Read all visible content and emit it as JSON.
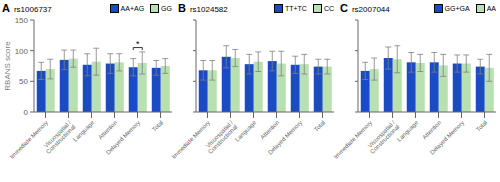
{
  "chart_data": [
    {
      "type": "bar",
      "panel_label": "A",
      "title": "rs1006737",
      "ylabel": "RBANS score",
      "categories": [
        "Immediate Memory",
        "Visuospatial / Constructional",
        "Language",
        "Attention",
        "Delayed Memory",
        "Total"
      ],
      "series": [
        {
          "name": "AA+AG",
          "color": "#1a4bc4",
          "values": [
            67,
            85,
            77,
            79,
            73,
            72
          ],
          "errors": [
            14,
            16,
            18,
            16,
            14,
            12
          ]
        },
        {
          "name": "GG",
          "color": "#b8e0b0",
          "values": [
            70,
            87,
            82,
            81,
            80,
            75
          ],
          "errors": [
            16,
            14,
            22,
            14,
            18,
            12
          ]
        }
      ],
      "ylim": [
        0,
        150
      ],
      "yticks": [
        0,
        50,
        100,
        150
      ],
      "legend": "upper right",
      "grid": false,
      "annotations": [
        {
          "text": "*",
          "category": "Delayed Memory"
        }
      ]
    },
    {
      "type": "bar",
      "panel_label": "B",
      "title": "rs1024582",
      "categories": [
        "Immediate Memory",
        "Visuospatial / Constructional",
        "Language",
        "Attention",
        "Delayed Memory",
        "Total"
      ],
      "series": [
        {
          "name": "TT+TC",
          "color": "#1a4bc4",
          "values": [
            68,
            90,
            78,
            83,
            77,
            74
          ],
          "errors": [
            16,
            18,
            16,
            16,
            14,
            12
          ]
        },
        {
          "name": "CC",
          "color": "#b8e0b0",
          "values": [
            68,
            88,
            82,
            79,
            78,
            74
          ],
          "errors": [
            16,
            14,
            16,
            20,
            16,
            12
          ]
        }
      ],
      "ylim": [
        0,
        150
      ],
      "yticks": [
        0,
        50,
        100,
        150
      ],
      "legend": "upper right",
      "grid": false,
      "tick_labels": "x"
    },
    {
      "type": "bar",
      "panel_label": "C",
      "title": "rs2007044",
      "categories": [
        "Immediate Memory",
        "Visuospatial / Constructional",
        "Language",
        "Attention",
        "Delayed Memory",
        "Total"
      ],
      "series": [
        {
          "name": "GG+GA",
          "color": "#1a4bc4",
          "values": [
            67,
            88,
            81,
            81,
            79,
            74
          ],
          "errors": [
            14,
            18,
            16,
            16,
            14,
            12
          ]
        },
        {
          "name": "AA",
          "color": "#b8e0b0",
          "values": [
            70,
            86,
            80,
            76,
            79,
            72
          ],
          "errors": [
            18,
            22,
            14,
            18,
            14,
            22
          ]
        }
      ],
      "ylim": [
        0,
        150
      ],
      "yticks": [
        0,
        50,
        100,
        150
      ],
      "legend": "upper right",
      "grid": false,
      "tick_labels": "x"
    }
  ]
}
